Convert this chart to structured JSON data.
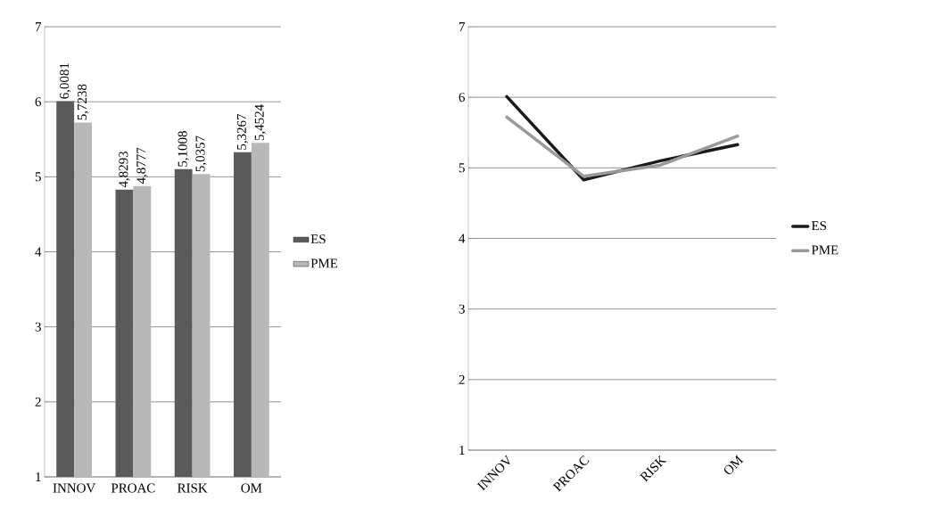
{
  "chart_data": [
    {
      "type": "bar",
      "categories": [
        "INNOV",
        "PROAC",
        "RISK",
        "OM"
      ],
      "ylim": [
        1,
        7
      ],
      "yticks": [
        1,
        2,
        3,
        4,
        5,
        6,
        7
      ],
      "grid": "y",
      "legend": "right",
      "series": [
        {
          "name": "ES",
          "color": "#5a5a5a",
          "values": [
            6.0081,
            4.8293,
            5.1008,
            5.3267
          ],
          "value_labels": [
            "6,0081",
            "4,8293",
            "5,1008",
            "5,3267"
          ]
        },
        {
          "name": "PME",
          "color": "#b8b8b8",
          "values": [
            5.7238,
            4.8777,
            5.0357,
            5.4524
          ],
          "value_labels": [
            "5,7238",
            "4,8777",
            "5,0357",
            "5,4524"
          ]
        }
      ]
    },
    {
      "type": "line",
      "categories": [
        "INNOV",
        "PROAC",
        "RISK",
        "OM"
      ],
      "ylim": [
        1,
        7
      ],
      "yticks": [
        1,
        2,
        3,
        4,
        5,
        6,
        7
      ],
      "grid": "y",
      "legend": "right",
      "marker": "none",
      "line_style": "solid",
      "series": [
        {
          "name": "ES",
          "color": "#1a1a1a",
          "values": [
            6.01,
            4.83,
            5.1,
            5.33
          ]
        },
        {
          "name": "PME",
          "color": "#9a9a9a",
          "values": [
            5.72,
            4.88,
            5.04,
            5.45
          ]
        }
      ]
    }
  ]
}
